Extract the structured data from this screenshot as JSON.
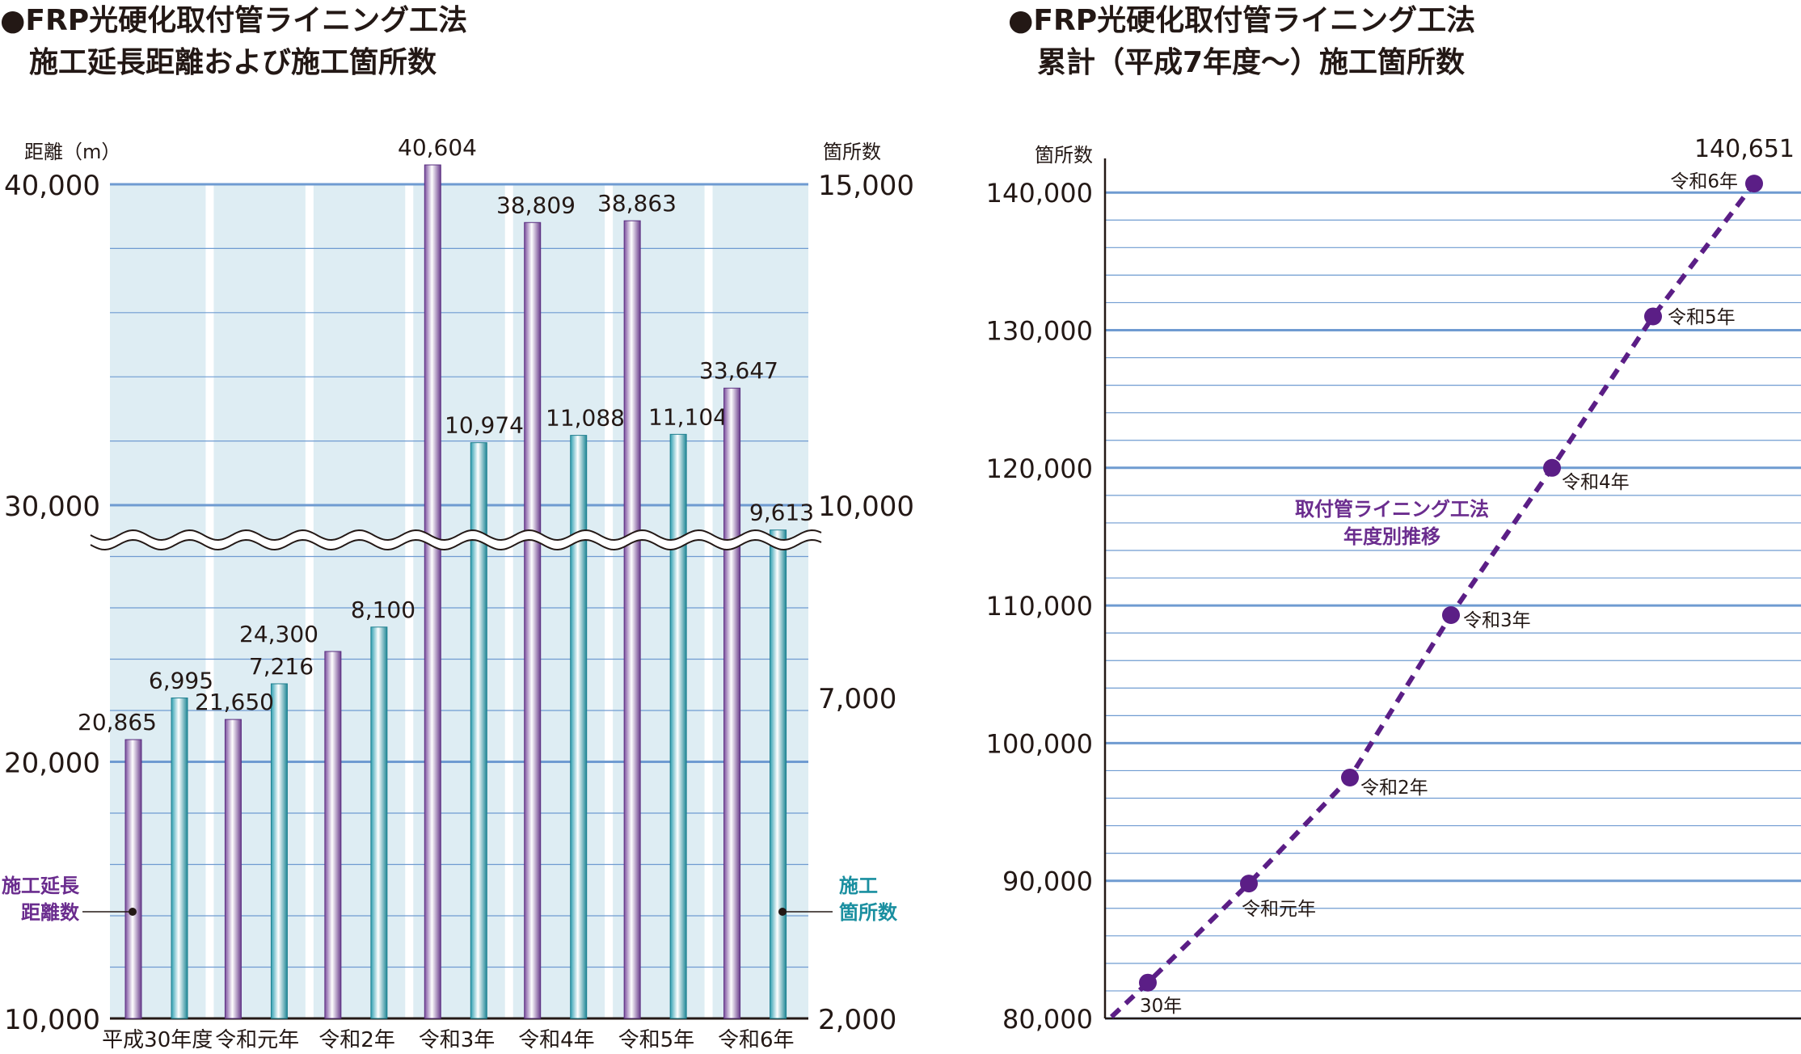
{
  "chart_data": [
    {
      "type": "bar",
      "title": "●FRP光硬化取付管ライニング工法\n　施工延長距離および施工箇所数",
      "ylabel_left": "距離（m）",
      "ylabel_right": "箇所数",
      "categories": [
        "平成30年度",
        "令和元年",
        "令和2年",
        "令和3年",
        "令和4年",
        "令和5年",
        "令和6年"
      ],
      "left_axis": {
        "ticks": [
          "10,000",
          "20,000",
          "30,000",
          "40,000"
        ],
        "ylim": [
          10000,
          40000
        ],
        "broken": true
      },
      "right_axis": {
        "ticks": [
          "2,000",
          "7,000",
          "10,000",
          "15,000"
        ],
        "ylim": [
          2000,
          15000
        ],
        "broken": true
      },
      "series": [
        {
          "name": "施工延長距離数",
          "axis": "left",
          "color": "#8b6aa8",
          "values": [
            20865,
            21650,
            24300,
            40604,
            38809,
            38863,
            33647
          ],
          "labels": [
            "20,865",
            "21,650",
            "24,300",
            "40,604",
            "38,809",
            "38,863",
            "33,647"
          ]
        },
        {
          "name": "施工箇所数",
          "axis": "right",
          "color": "#3aa7b8",
          "values": [
            6995,
            7216,
            8100,
            10974,
            11088,
            11104,
            9613
          ],
          "labels": [
            "6,995",
            "7,216",
            "8,100",
            "10,974",
            "11,088",
            "11,104",
            "9,613"
          ]
        }
      ],
      "legend_left": [
        "施工延長",
        "距離数"
      ],
      "legend_right": [
        "施工",
        "箇所数"
      ],
      "colors": {
        "background": "#deedf3",
        "gridline": "#6f9bd1",
        "distance_label": "#6a2c8e",
        "count_label": "#1a8fa0"
      }
    },
    {
      "type": "line",
      "title": "●FRP光硬化取付管ライニング工法\n　累計（平成7年度〜）施工箇所数",
      "ylabel": "箇所数",
      "ylim": [
        80000,
        140000
      ],
      "yticks": [
        "80,000",
        "90,000",
        "100,000",
        "110,000",
        "120,000",
        "130,000",
        "140,000"
      ],
      "x": [
        "30年",
        "令和元年",
        "令和2年",
        "令和3年",
        "令和4年",
        "令和5年",
        "令和6年"
      ],
      "values": [
        82600,
        89800,
        97500,
        109300,
        120000,
        131000,
        140651
      ],
      "annotation_top": "140,651",
      "series_label": [
        "取付管ライニング工法",
        "年度別推移"
      ],
      "colors": {
        "line": "#5b1e86",
        "label": "#6a2c8e",
        "gridline": "#6f9bd1"
      }
    }
  ]
}
